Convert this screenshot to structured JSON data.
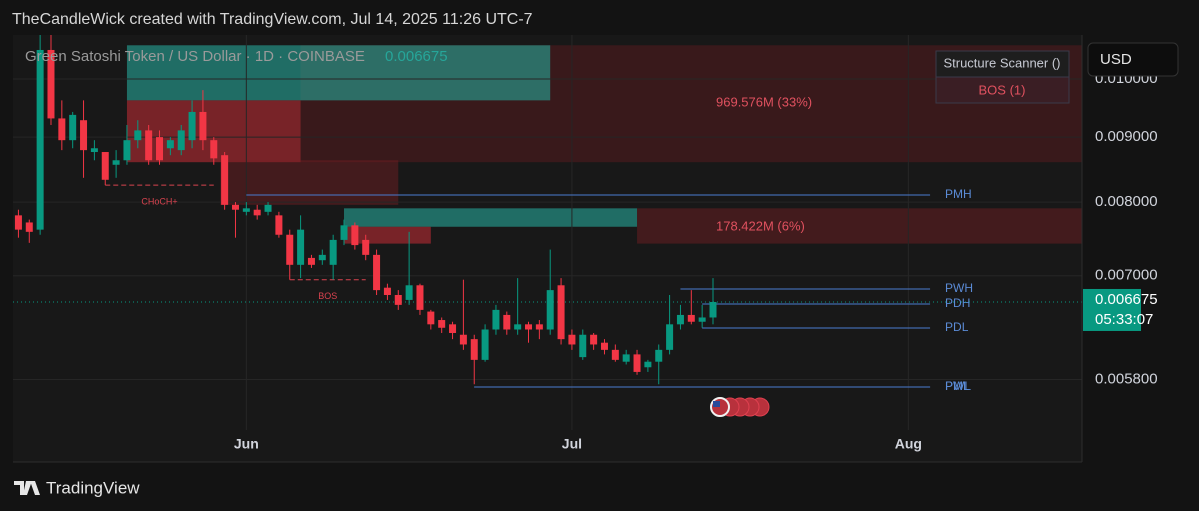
{
  "header": "TheCandleWick created with TradingView.com, Jul 14, 2025 11:26 UTC-7",
  "footer": "TradingView",
  "chart_data": {
    "type": "candlestick",
    "title": "Green Satoshi Token / US Dollar · 1D · COINBASE",
    "last_price": 0.006675,
    "countdown": "05:33:07",
    "currency": "USD",
    "up_color": "#089981",
    "down_color": "#f23645",
    "log_scale": true,
    "grid": true,
    "ylim": [
      0.005058,
      0.01083
    ],
    "yticks": [
      {
        "value": 0.0058,
        "label": "0.005800"
      },
      {
        "value": 0.007,
        "label": "0.007000"
      },
      {
        "value": 0.008,
        "label": "0.008000"
      },
      {
        "value": 0.009,
        "label": "0.009000"
      },
      {
        "value": 0.01,
        "label": "0.010000"
      }
    ],
    "xlim": [
      -0.5,
      98
    ],
    "xticks": [
      {
        "value": 21,
        "label": "Jun"
      },
      {
        "value": 51,
        "label": "Jul"
      },
      {
        "value": 82,
        "label": "Aug"
      }
    ],
    "open": [
      0.00781,
      0.00771,
      0.00761,
      0.01054,
      0.00931,
      0.00895,
      0.00928,
      0.00876,
      0.00876,
      0.00856,
      0.00863,
      0.00895,
      0.00911,
      0.009,
      0.00882,
      0.00879,
      0.00895,
      0.00942,
      0.00895,
      0.00871,
      0.00796,
      0.00786,
      0.00789,
      0.00786,
      0.00781,
      0.00754,
      0.00714,
      0.00723,
      0.0072,
      0.00714,
      0.00747,
      0.00767,
      0.00747,
      0.00727,
      0.00685,
      0.00676,
      0.0067,
      0.00688,
      0.00656,
      0.00646,
      0.00641,
      0.00629,
      0.00624,
      0.00601,
      0.00635,
      0.00652,
      0.00635,
      0.00641,
      0.00641,
      0.00635,
      0.00688,
      0.00629,
      0.00604,
      0.00629,
      0.0062,
      0.00612,
      0.00599,
      0.00607,
      0.00593,
      0.00599,
      0.00612,
      0.00641,
      0.00652,
      0.00644,
      0.00649
    ],
    "high": [
      0.00789,
      0.00775,
      0.01083,
      0.01083,
      0.00962,
      0.00942,
      0.00962,
      0.00895,
      0.00876,
      0.00879,
      0.0092,
      0.00928,
      0.0092,
      0.00911,
      0.009,
      0.0092,
      0.00962,
      0.0098,
      0.009,
      0.00876,
      0.008,
      0.008,
      0.00796,
      0.008,
      0.00786,
      0.00761,
      0.00781,
      0.00727,
      0.00734,
      0.00754,
      0.00775,
      0.00771,
      0.00754,
      0.00734,
      0.0069,
      0.00682,
      0.00758,
      0.0069,
      0.00658,
      0.00649,
      0.00644,
      0.00695,
      0.00629,
      0.00641,
      0.00664,
      0.00656,
      0.00697,
      0.00644,
      0.00646,
      0.00734,
      0.00697,
      0.00635,
      0.00635,
      0.00631,
      0.00624,
      0.00618,
      0.00612,
      0.00612,
      0.00601,
      0.00618,
      0.00676,
      0.00664,
      0.00682,
      0.00664,
      0.00697
    ],
    "low": [
      0.0075,
      0.00743,
      0.00754,
      0.0092,
      0.00879,
      0.00882,
      0.00836,
      0.00863,
      0.00825,
      0.00836,
      0.00856,
      0.00882,
      0.00856,
      0.00856,
      0.00871,
      0.00871,
      0.00882,
      0.00879,
      0.00856,
      0.00789,
      0.0075,
      0.00781,
      0.00775,
      0.00781,
      0.0075,
      0.00695,
      0.00697,
      0.0071,
      0.00714,
      0.00695,
      0.0074,
      0.00734,
      0.0072,
      0.00676,
      0.0067,
      0.00658,
      0.00664,
      0.00652,
      0.00635,
      0.00631,
      0.00624,
      0.00612,
      0.00575,
      0.00599,
      0.00629,
      0.00629,
      0.00629,
      0.0062,
      0.00624,
      0.00629,
      0.00618,
      0.00612,
      0.00601,
      0.00612,
      0.00607,
      0.00599,
      0.00596,
      0.00585,
      0.00588,
      0.00575,
      0.00607,
      0.00635,
      0.00641,
      0.00637,
      0.00641
    ],
    "close": [
      0.00761,
      0.00758,
      0.01054,
      0.00931,
      0.00895,
      0.00937,
      0.00879,
      0.00882,
      0.00833,
      0.00863,
      0.00895,
      0.00911,
      0.00863,
      0.00863,
      0.00895,
      0.00911,
      0.00942,
      0.00895,
      0.00866,
      0.00796,
      0.00789,
      0.00791,
      0.00781,
      0.00796,
      0.00754,
      0.00714,
      0.00761,
      0.00714,
      0.00727,
      0.00747,
      0.00767,
      0.0074,
      0.00727,
      0.00682,
      0.00676,
      0.00664,
      0.00688,
      0.00658,
      0.00641,
      0.00637,
      0.00631,
      0.00618,
      0.00601,
      0.00635,
      0.00658,
      0.00635,
      0.00641,
      0.00635,
      0.00635,
      0.00682,
      0.00624,
      0.00618,
      0.00629,
      0.00618,
      0.00612,
      0.00601,
      0.00607,
      0.00588,
      0.00599,
      0.00612,
      0.00641,
      0.00652,
      0.00644,
      0.00649,
      0.006675
    ],
    "zones": [
      {
        "x": [
          26,
          98
        ],
        "y": [
          0.0086,
          0.01063
        ],
        "color": "rgba(120,30,35,0.35)"
      },
      {
        "x": [
          10,
          49
        ],
        "y": [
          0.00962,
          0.01063
        ],
        "color": "rgba(38,166,154,0.6)"
      },
      {
        "x": [
          10,
          26
        ],
        "y": [
          0.0086,
          0.00962
        ],
        "color": "rgba(200,45,55,0.55)"
      },
      {
        "x": [
          18.6,
          35
        ],
        "y": [
          0.00796,
          0.00863
        ],
        "color": "rgba(120,30,35,0.45)"
      },
      {
        "x": [
          57,
          98
        ],
        "y": [
          0.00742,
          0.00791
        ],
        "color": "rgba(120,30,35,0.45)"
      },
      {
        "x": [
          30,
          57
        ],
        "y": [
          0.00765,
          0.00791
        ],
        "color": "rgba(38,166,154,0.6)"
      },
      {
        "x": [
          30,
          38
        ],
        "y": [
          0.00742,
          0.00765
        ],
        "color": "rgba(200,45,55,0.55)"
      }
    ],
    "levels": [
      {
        "label": "PMH",
        "value": 0.008103,
        "from": 21,
        "to": 84
      },
      {
        "label": "PWH",
        "value": 0.006834,
        "from": 61,
        "to": 84
      },
      {
        "label": "PDH",
        "value": 0.006651,
        "from": 63,
        "to": 84
      },
      {
        "label": "PDL",
        "value": 0.006367,
        "from": 63,
        "to": 84
      },
      {
        "label": "PWL",
        "value": 0.005722,
        "from": 42,
        "to": 84
      },
      {
        "label": "PML",
        "value": 0.005722,
        "from": 42,
        "to": 84
      }
    ],
    "structure": [
      {
        "label": "CHoCH+",
        "value": 0.00825,
        "x": [
          8,
          18
        ]
      },
      {
        "label": "BOS",
        "value": 0.00695,
        "x": [
          25,
          32
        ]
      }
    ],
    "annotations": [
      "969.576M (33%)",
      "178.422M (6%)"
    ],
    "indicator": {
      "name": "Structure Scanner ()",
      "status": "BOS (1)"
    }
  }
}
